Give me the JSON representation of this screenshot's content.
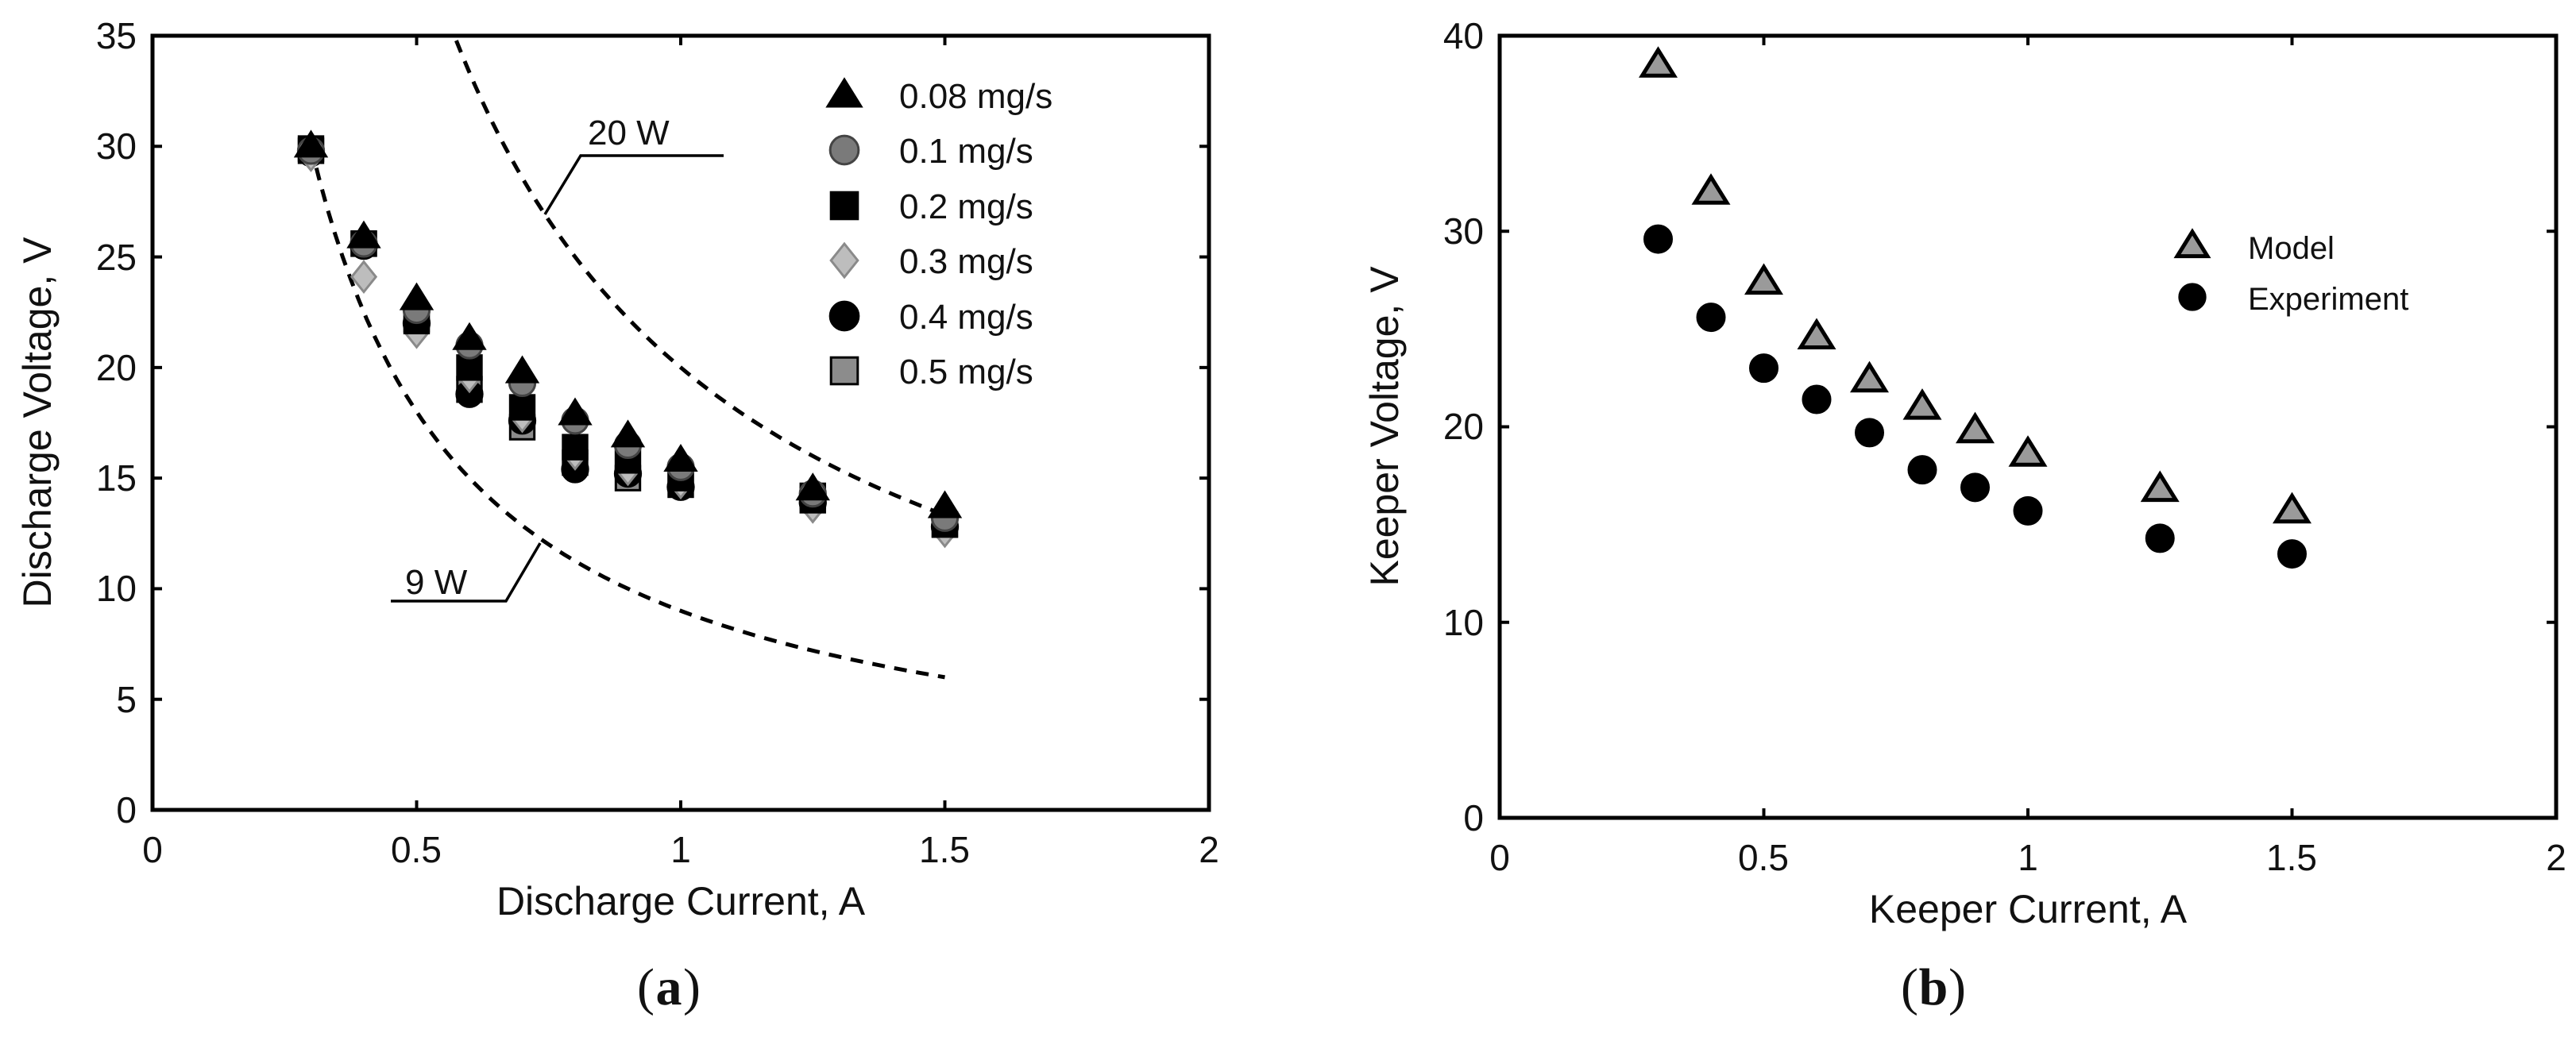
{
  "chart_data": [
    {
      "id": "a",
      "type": "scatter",
      "panel_label": {
        "open": "(",
        "letter": "a",
        "close": ")"
      },
      "xlabel": "Discharge Current, A",
      "ylabel": "Discharge Voltage, V",
      "xlim": [
        0,
        2
      ],
      "ylim": [
        0,
        35
      ],
      "xticks": [
        0,
        0.5,
        1,
        1.5,
        2
      ],
      "xtick_labels": [
        "0",
        "0.5",
        "1",
        "1.5",
        "2"
      ],
      "yticks": [
        0,
        5,
        10,
        15,
        20,
        25,
        30,
        35
      ],
      "ytick_labels": [
        "0",
        "5",
        "10",
        "15",
        "20",
        "25",
        "30",
        "35"
      ],
      "grid": false,
      "legend_position": "top-right",
      "series": [
        {
          "name": "0.08 mg/s",
          "marker": "triangle",
          "fill": "#000000",
          "stroke": "#000000",
          "x": [
            0.3,
            0.4,
            0.5,
            0.6,
            0.7,
            0.8,
            0.9,
            1.0,
            1.25,
            1.5
          ],
          "y": [
            30.0,
            25.9,
            23.1,
            21.3,
            19.8,
            17.9,
            16.9,
            15.8,
            14.5,
            13.7
          ]
        },
        {
          "name": "0.1 mg/s",
          "marker": "circle",
          "fill": "#7a7a7a",
          "stroke": "#444444",
          "x": [
            0.3,
            0.4,
            0.5,
            0.6,
            0.7,
            0.8,
            0.9,
            1.0,
            1.25,
            1.5
          ],
          "y": [
            29.8,
            25.6,
            22.6,
            21.0,
            19.3,
            17.6,
            16.5,
            15.5,
            14.3,
            13.2
          ]
        },
        {
          "name": "0.2 mg/s",
          "marker": "square",
          "fill": "#000000",
          "stroke": "#000000",
          "x": [
            0.3,
            0.4,
            0.5,
            0.6,
            0.7,
            0.8,
            0.9,
            1.0,
            1.25,
            1.5
          ],
          "y": [
            29.9,
            25.6,
            22.1,
            20.0,
            18.2,
            16.4,
            15.8,
            15.0,
            14.0,
            12.9
          ]
        },
        {
          "name": "0.3 mg/s",
          "marker": "diamond",
          "fill": "#bdbdbd",
          "stroke": "#8a8a8a",
          "x": [
            0.3,
            0.4,
            0.5,
            0.6,
            0.7,
            0.8,
            0.9,
            1.0,
            1.25,
            1.5
          ],
          "y": [
            29.6,
            24.1,
            21.6,
            19.6,
            17.8,
            16.1,
            15.4,
            14.8,
            13.7,
            12.6
          ]
        },
        {
          "name": "0.4 mg/s",
          "marker": "circle",
          "fill": "#000000",
          "stroke": "#000000",
          "x": [
            0.3,
            0.4,
            0.5,
            0.6,
            0.7,
            0.8,
            0.9,
            1.0,
            1.25,
            1.5
          ],
          "y": [
            29.7,
            25.5,
            22.0,
            18.8,
            17.6,
            15.4,
            15.2,
            14.6,
            13.9,
            12.8
          ]
        },
        {
          "name": "0.5 mg/s",
          "marker": "square",
          "fill": "#8c8c8c",
          "stroke": "#000000",
          "x": [
            0.3,
            0.4,
            0.5,
            0.6,
            0.7,
            0.8,
            0.9,
            1.0,
            1.25,
            1.5
          ],
          "y": [
            29.8,
            25.6,
            22.2,
            19.0,
            17.3,
            15.7,
            15.0,
            14.7,
            14.2,
            12.9
          ]
        }
      ],
      "curves": [
        {
          "name": "9 W",
          "power": 9,
          "style": "dashed",
          "x_range": [
            0.3,
            1.5
          ]
        },
        {
          "name": "20 W",
          "power": 20,
          "style": "dashed",
          "x_range": [
            0.575,
            1.5
          ]
        }
      ],
      "annotations": [
        {
          "text": "20 W",
          "leader_to": [
            0.74,
            27.2
          ],
          "label_at": [
            0.84,
            29.7
          ]
        },
        {
          "text": "9 W",
          "leader_to": [
            0.73,
            12.4
          ],
          "label_at": [
            0.67,
            9.8
          ]
        }
      ]
    },
    {
      "id": "b",
      "type": "scatter",
      "panel_label": {
        "open": "(",
        "letter": "b",
        "close": ")"
      },
      "xlabel": "Keeper Current, A",
      "ylabel": "Keeper Voltage, V",
      "xlim": [
        0,
        2
      ],
      "ylim": [
        0,
        40
      ],
      "xticks": [
        0,
        0.5,
        1,
        1.5,
        2
      ],
      "xtick_labels": [
        "0",
        "0.5",
        "1",
        "1.5",
        "2"
      ],
      "yticks": [
        0,
        10,
        20,
        30,
        40
      ],
      "ytick_labels": [
        "0",
        "10",
        "20",
        "30",
        "40"
      ],
      "grid": false,
      "legend_position": "top-right",
      "series": [
        {
          "name": "Model",
          "marker": "open-triangle",
          "fill": "#9a9a9a",
          "stroke": "#000000",
          "x": [
            0.3,
            0.4,
            0.5,
            0.6,
            0.7,
            0.8,
            0.9,
            1.0,
            1.25,
            1.5
          ],
          "y": [
            38.5,
            32.0,
            27.4,
            24.6,
            22.4,
            21.0,
            19.8,
            18.6,
            16.8,
            15.7
          ]
        },
        {
          "name": "Experiment",
          "marker": "circle",
          "fill": "#000000",
          "stroke": "#000000",
          "x": [
            0.3,
            0.4,
            0.5,
            0.6,
            0.7,
            0.8,
            0.9,
            1.0,
            1.25,
            1.5
          ],
          "y": [
            29.6,
            25.6,
            23.0,
            21.4,
            19.7,
            17.8,
            16.9,
            15.7,
            14.3,
            13.5
          ]
        }
      ]
    }
  ]
}
